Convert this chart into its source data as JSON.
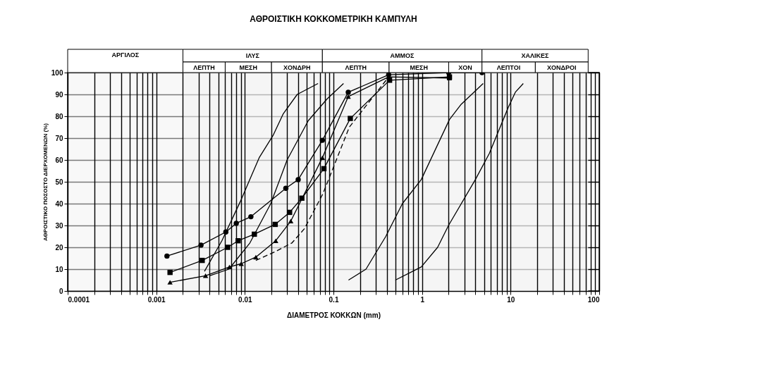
{
  "chart_data": {
    "type": "line",
    "title": "ΑΘΡΟΙΣΤΙΚΗ ΚΟΚΚΟΜΕΤΡΙΚΗ ΚΑΜΠΥΛΗ",
    "xlabel": "ΔΙΑΜΕΤΡΟΣ ΚΟΚΚΩΝ (mm)",
    "ylabel": "ΑΘΡΟΙΣΤΙΚΟ ΠΟΣΟΣΤΟ ΔΙΕΡΧΟΜΕΝΩΝ (%)",
    "log": "x",
    "grid": true,
    "xlim": [
      0.0001,
      100
    ],
    "ylim": [
      0,
      100
    ],
    "xticks": [
      0.0001,
      {
        "value": 0.0002,
        "label": null
      },
      {
        "value": 0.0003,
        "label": null
      },
      {
        "value": 0.0004,
        "label": null
      },
      {
        "value": 0.0005,
        "label": null
      },
      {
        "value": 0.0006,
        "label": null
      },
      {
        "value": 0.0007,
        "label": null
      },
      {
        "value": 0.0008,
        "label": null
      },
      {
        "value": 0.0009,
        "label": null
      },
      0.001,
      {
        "value": 0.002,
        "label": null
      },
      {
        "value": 0.003,
        "label": null
      },
      {
        "value": 0.004,
        "label": null
      },
      {
        "value": 0.005,
        "label": null
      },
      {
        "value": 0.006,
        "label": null
      },
      {
        "value": 0.007,
        "label": null
      },
      {
        "value": 0.008,
        "label": null
      },
      {
        "value": 0.009,
        "label": null
      },
      0.01,
      {
        "value": 0.02,
        "label": null
      },
      {
        "value": 0.03,
        "label": null
      },
      {
        "value": 0.04,
        "label": null
      },
      {
        "value": 0.05,
        "label": null
      },
      {
        "value": 0.06,
        "label": null
      },
      {
        "value": 0.07,
        "label": null
      },
      {
        "value": 0.08,
        "label": null
      },
      {
        "value": 0.09,
        "label": null
      },
      0.1,
      {
        "value": 0.2,
        "label": null
      },
      {
        "value": 0.3,
        "label": null
      },
      {
        "value": 0.4,
        "label": null
      },
      {
        "value": 0.5,
        "label": null
      },
      {
        "value": 0.6,
        "label": null
      },
      {
        "value": 0.7,
        "label": null
      },
      {
        "value": 0.8,
        "label": null
      },
      {
        "value": 0.9,
        "label": null
      },
      1,
      {
        "value": 2,
        "label": null
      },
      {
        "value": 3,
        "label": null
      },
      {
        "value": 4,
        "label": null
      },
      {
        "value": 5,
        "label": null
      },
      {
        "value": 6,
        "label": null
      },
      {
        "value": 7,
        "label": null
      },
      {
        "value": 8,
        "label": null
      },
      {
        "value": 9,
        "label": null
      },
      10,
      {
        "value": 20,
        "label": null
      },
      {
        "value": 30,
        "label": null
      },
      {
        "value": 40,
        "label": null
      },
      {
        "value": 50,
        "label": null
      },
      {
        "value": 60,
        "label": null
      },
      {
        "value": 70,
        "label": null
      },
      {
        "value": 80,
        "label": null
      },
      {
        "value": 90,
        "label": null
      },
      100
    ],
    "yticks": [
      0,
      10,
      20,
      30,
      40,
      50,
      60,
      70,
      80,
      90,
      100
    ],
    "bands": [
      {
        "axis": "x",
        "from": 0.0001,
        "to": 0.002,
        "label": "ΑΡΓΙΛΟΣ",
        "color": "#f2f2f2"
      },
      {
        "axis": "x",
        "from": 0.002,
        "to": 0.075,
        "label": "ΙΛΥΣ",
        "color": "#f2f2f2"
      },
      {
        "axis": "x",
        "from": 0.002,
        "to": 0.006,
        "label": "ΛΕΠΤΗ",
        "color": "#f2f2f2"
      },
      {
        "axis": "x",
        "from": 0.006,
        "to": 0.02,
        "label": "ΜΕΣΗ",
        "color": "#f2f2f2"
      },
      {
        "axis": "x",
        "from": 0.02,
        "to": 0.075,
        "label": "ΧΟΝΔΡΗ",
        "color": "#f2f2f2"
      },
      {
        "axis": "x",
        "from": 0.075,
        "to": 4.75,
        "label": "ΑΜΜΟΣ",
        "color": "#f2f2f2"
      },
      {
        "axis": "x",
        "from": 0.075,
        "to": 0.425,
        "label": "ΛΕΠΤΗ",
        "color": "#f2f2f2"
      },
      {
        "axis": "x",
        "from": 0.425,
        "to": 2,
        "label": "ΜΕΣΗ",
        "color": "#f2f2f2"
      },
      {
        "axis": "x",
        "from": 2,
        "to": 4.75,
        "label": "ΧΟΝ",
        "color": "#f2f2f2"
      },
      {
        "axis": "x",
        "from": 4.75,
        "to": 75,
        "label": "ΧΑΛΙΚΕΣ",
        "color": "#f2f2f2"
      },
      {
        "axis": "x",
        "from": 4.75,
        "to": 19,
        "label": "ΛΕΠΤΟΙ",
        "color": "#f2f2f2"
      },
      {
        "axis": "x",
        "from": 19,
        "to": 75,
        "label": "ΧΟΝΔΡΟΙ",
        "color": "#f2f2f2"
      }
    ],
    "series": [
      {
        "color": "#000000",
        "marker": "none",
        "line_style": "solid",
        "x": [
          0.0035,
          0.0055,
          0.0089,
          0.0145,
          0.021,
          0.027,
          0.039,
          0.067
        ],
        "values": [
          9,
          23,
          41,
          61,
          71.5,
          81,
          90,
          95
        ]
      },
      {
        "color": "#000000",
        "marker": "none",
        "line_style": "solid",
        "x": [
          0.004,
          0.0066,
          0.0114,
          0.0196,
          0.03,
          0.052,
          0.085,
          0.13
        ],
        "values": [
          7,
          10,
          22,
          40,
          60,
          78,
          88,
          95
        ]
      },
      {
        "color": "#000000",
        "marker": "none",
        "line_style": "solid",
        "x": [
          0.148,
          0.233,
          0.39,
          0.6,
          0.98,
          2.04,
          2.77,
          4.9
        ],
        "values": [
          5,
          10,
          25,
          40,
          51,
          78.5,
          85.5,
          95
        ]
      },
      {
        "color": "#000000",
        "marker": "none",
        "line_style": "solid",
        "x": [
          0.5,
          0.98,
          1.5,
          1.99,
          4.0,
          5.75,
          9.4,
          11.3,
          13.9
        ],
        "values": [
          5,
          11,
          20,
          30,
          51,
          63,
          84,
          91,
          95
        ]
      },
      {
        "color": "#000000",
        "marker": "circle",
        "line_style": "solid",
        "x": [
          0.00132,
          0.0032,
          0.0061,
          0.008,
          0.0117,
          0.029,
          0.04,
          0.075,
          0.147,
          0.42,
          2,
          4.75
        ],
        "values": [
          16,
          21,
          27,
          31,
          34,
          47,
          51,
          69,
          91,
          99,
          100,
          100
        ]
      },
      {
        "color": "#000000",
        "marker": "square",
        "line_style": "solid",
        "x": [
          0.00143,
          0.0033,
          0.0064,
          0.0084,
          0.0128,
          0.022,
          0.032,
          0.044,
          0.078,
          0.155,
          0.43,
          2.04
        ],
        "values": [
          8.5,
          14,
          20,
          23,
          26,
          30.5,
          36,
          42.5,
          56,
          79,
          96.5,
          98
        ]
      },
      {
        "color": "#000000",
        "marker": "triangle",
        "line_style": "solid",
        "x": [
          0.00143,
          0.0036,
          0.0067,
          0.0091,
          0.0133,
          0.0223,
          0.033,
          0.075,
          0.147,
          0.42,
          2.04
        ],
        "values": [
          4,
          7,
          11,
          12.5,
          15.5,
          23,
          32,
          61,
          89,
          98,
          97.5
        ]
      },
      {
        "color": "#000000",
        "marker": "none",
        "line_style": "dashed",
        "x": [
          0.0133,
          0.022,
          0.034,
          0.047,
          0.076,
          0.151,
          0.42
        ],
        "values": [
          14,
          18,
          22,
          28.5,
          44.5,
          75,
          98
        ]
      }
    ]
  }
}
